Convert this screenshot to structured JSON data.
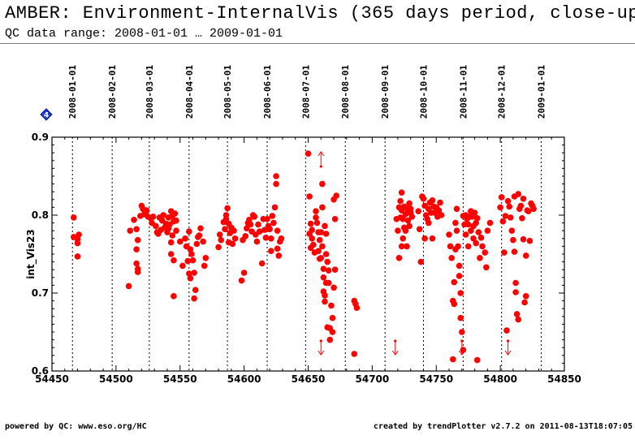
{
  "header": {
    "title": "AMBER: Environment-InternalVis (365 days period, close-up)",
    "subtitle": "QC data range: 2008-01-01 … 2009-01-01"
  },
  "footer": {
    "left": "powered by QC: www.eso.org/HC",
    "right": "created by trendPlotter v2.7.2 on 2011-08-13T18:07:05"
  },
  "badge": {
    "text": "4",
    "color": "#1e3cd6",
    "icon": "diamond-icon"
  },
  "colors": {
    "data": "#ff0000",
    "axis": "#000000"
  },
  "chart_data": {
    "type": "scatter",
    "xlim": [
      54450,
      54850
    ],
    "ylim": [
      0.6,
      0.9
    ],
    "ylabel": "int_Vis23",
    "xticks": [
      54450,
      54500,
      54550,
      54600,
      54650,
      54700,
      54750,
      54800,
      54850
    ],
    "xtick_labels": [
      "54450",
      "54500",
      "54550",
      "54600",
      "54650",
      "54700",
      "54750",
      "54800",
      "54850"
    ],
    "yticks": [
      0.6,
      0.7,
      0.8,
      0.9
    ],
    "ytick_labels": [
      "0.6",
      "0.7",
      "0.8",
      "0.9"
    ],
    "date_marks": [
      {
        "x": 54466,
        "label": "2008-01-01"
      },
      {
        "x": 54497,
        "label": "2008-02-01"
      },
      {
        "x": 54526,
        "label": "2008-03-01"
      },
      {
        "x": 54557,
        "label": "2008-04-01"
      },
      {
        "x": 54587,
        "label": "2008-05-01"
      },
      {
        "x": 54618,
        "label": "2008-06-01"
      },
      {
        "x": 54648,
        "label": "2008-07-01"
      },
      {
        "x": 54679,
        "label": "2008-08-01"
      },
      {
        "x": 54710,
        "label": "2008-09-01"
      },
      {
        "x": 54740,
        "label": "2008-10-01"
      },
      {
        "x": 54771,
        "label": "2008-11-01"
      },
      {
        "x": 54801,
        "label": "2008-12-01"
      },
      {
        "x": 54832,
        "label": "2009-01-01"
      }
    ],
    "outliers": [
      {
        "x": 54660,
        "dir": "up"
      },
      {
        "x": 54660,
        "dir": "down"
      },
      {
        "x": 54718,
        "dir": "down"
      },
      {
        "x": 54770,
        "dir": "down"
      },
      {
        "x": 54806,
        "dir": "down"
      }
    ],
    "points": [
      [
        54467,
        0.797
      ],
      [
        54467,
        0.772
      ],
      [
        54470,
        0.769
      ],
      [
        54470,
        0.764
      ],
      [
        54471,
        0.775
      ],
      [
        54470,
        0.747
      ],
      [
        54510,
        0.709
      ],
      [
        54511,
        0.78
      ],
      [
        54514,
        0.794
      ],
      [
        54516,
        0.782
      ],
      [
        54516,
        0.756
      ],
      [
        54516,
        0.738
      ],
      [
        54517,
        0.727
      ],
      [
        54517,
        0.731
      ],
      [
        54517,
        0.768
      ],
      [
        54519,
        0.799
      ],
      [
        54520,
        0.812
      ],
      [
        54521,
        0.808
      ],
      [
        54522,
        0.801
      ],
      [
        54523,
        0.803
      ],
      [
        54525,
        0.798
      ],
      [
        54524,
        0.806
      ],
      [
        54527,
        0.796
      ],
      [
        54528,
        0.79
      ],
      [
        54529,
        0.798
      ],
      [
        54531,
        0.786
      ],
      [
        54532,
        0.778
      ],
      [
        54533,
        0.776
      ],
      [
        54534,
        0.797
      ],
      [
        54535,
        0.781
      ],
      [
        54536,
        0.793
      ],
      [
        54537,
        0.8
      ],
      [
        54538,
        0.784
      ],
      [
        54539,
        0.789
      ],
      [
        54540,
        0.778
      ],
      [
        54541,
        0.797
      ],
      [
        54541,
        0.783
      ],
      [
        54543,
        0.765
      ],
      [
        54543,
        0.75
      ],
      [
        54542,
        0.788
      ],
      [
        54544,
        0.799
      ],
      [
        54545,
        0.792
      ],
      [
        54546,
        0.802
      ],
      [
        54547,
        0.793
      ],
      [
        54544,
        0.774
      ],
      [
        54545,
        0.742
      ],
      [
        54545,
        0.696
      ],
      [
        54547,
        0.78
      ],
      [
        54543,
        0.805
      ],
      [
        54550,
        0.766
      ],
      [
        54552,
        0.735
      ],
      [
        54554,
        0.77
      ],
      [
        54555,
        0.76
      ],
      [
        54556,
        0.741
      ],
      [
        54557,
        0.725
      ],
      [
        54558,
        0.719
      ],
      [
        54557,
        0.779
      ],
      [
        54558,
        0.756
      ],
      [
        54559,
        0.75
      ],
      [
        54560,
        0.742
      ],
      [
        54561,
        0.726
      ],
      [
        54561,
        0.693
      ],
      [
        54562,
        0.704
      ],
      [
        54563,
        0.763
      ],
      [
        54564,
        0.772
      ],
      [
        54565,
        0.774
      ],
      [
        54566,
        0.783
      ],
      [
        54568,
        0.766
      ],
      [
        54569,
        0.735
      ],
      [
        54570,
        0.745
      ],
      [
        54580,
        0.759
      ],
      [
        54581,
        0.775
      ],
      [
        54582,
        0.768
      ],
      [
        54584,
        0.791
      ],
      [
        54585,
        0.782
      ],
      [
        54586,
        0.8
      ],
      [
        54586,
        0.795
      ],
      [
        54587,
        0.809
      ],
      [
        54588,
        0.789
      ],
      [
        54589,
        0.777
      ],
      [
        54590,
        0.784
      ],
      [
        54591,
        0.763
      ],
      [
        54592,
        0.78
      ],
      [
        54593,
        0.77
      ],
      [
        54588,
        0.765
      ],
      [
        54598,
        0.716
      ],
      [
        54600,
        0.726
      ],
      [
        54599,
        0.768
      ],
      [
        54601,
        0.773
      ],
      [
        54602,
        0.783
      ],
      [
        54603,
        0.79
      ],
      [
        54604,
        0.794
      ],
      [
        54605,
        0.788
      ],
      [
        54606,
        0.779
      ],
      [
        54607,
        0.8
      ],
      [
        54608,
        0.798
      ],
      [
        54609,
        0.775
      ],
      [
        54610,
        0.766
      ],
      [
        54611,
        0.788
      ],
      [
        54612,
        0.779
      ],
      [
        54614,
        0.738
      ],
      [
        54615,
        0.795
      ],
      [
        54616,
        0.781
      ],
      [
        54617,
        0.771
      ],
      [
        54618,
        0.795
      ],
      [
        54619,
        0.786
      ],
      [
        54620,
        0.782
      ],
      [
        54621,
        0.77
      ],
      [
        54621,
        0.754
      ],
      [
        54622,
        0.799
      ],
      [
        54623,
        0.79
      ],
      [
        54624,
        0.81
      ],
      [
        54625,
        0.85
      ],
      [
        54625,
        0.84
      ],
      [
        54626,
        0.78
      ],
      [
        54626,
        0.757
      ],
      [
        54627,
        0.748
      ],
      [
        54628,
        0.766
      ],
      [
        54629,
        0.77
      ],
      [
        54650,
        0.879
      ],
      [
        54651,
        0.824
      ],
      [
        54651,
        0.776
      ],
      [
        54652,
        0.758
      ],
      [
        54652,
        0.789
      ],
      [
        54653,
        0.77
      ],
      [
        54653,
        0.781
      ],
      [
        54654,
        0.762
      ],
      [
        54655,
        0.752
      ],
      [
        54656,
        0.797
      ],
      [
        54656,
        0.805
      ],
      [
        54657,
        0.79
      ],
      [
        54658,
        0.778
      ],
      [
        54658,
        0.754
      ],
      [
        54659,
        0.744
      ],
      [
        54659,
        0.768
      ],
      [
        54660,
        0.778
      ],
      [
        54660,
        0.745
      ],
      [
        54661,
        0.84
      ],
      [
        54661,
        0.81
      ],
      [
        54661,
        0.76
      ],
      [
        54662,
        0.731
      ],
      [
        54662,
        0.72
      ],
      [
        54662,
        0.702
      ],
      [
        54663,
        0.697
      ],
      [
        54663,
        0.689
      ],
      [
        54664,
        0.75
      ],
      [
        54664,
        0.776
      ],
      [
        54665,
        0.74
      ],
      [
        54666,
        0.729
      ],
      [
        54666,
        0.713
      ],
      [
        54667,
        0.655
      ],
      [
        54667,
        0.64
      ],
      [
        54668,
        0.684
      ],
      [
        54669,
        0.668
      ],
      [
        54669,
        0.65
      ],
      [
        54670,
        0.82
      ],
      [
        54671,
        0.795
      ],
      [
        54672,
        0.825
      ],
      [
        54670,
        0.707
      ],
      [
        54671,
        0.73
      ],
      [
        54663,
        0.786
      ],
      [
        54664,
        0.713
      ],
      [
        54665,
        0.656
      ],
      [
        54686,
        0.69
      ],
      [
        54687,
        0.686
      ],
      [
        54688,
        0.681
      ],
      [
        54686,
        0.622
      ],
      [
        54719,
        0.795
      ],
      [
        54720,
        0.78
      ],
      [
        54721,
        0.81
      ],
      [
        54722,
        0.818
      ],
      [
        54722,
        0.797
      ],
      [
        54723,
        0.829
      ],
      [
        54723,
        0.806
      ],
      [
        54724,
        0.795
      ],
      [
        54725,
        0.811
      ],
      [
        54725,
        0.784
      ],
      [
        54726,
        0.801
      ],
      [
        54726,
        0.78
      ],
      [
        54727,
        0.81
      ],
      [
        54728,
        0.793
      ],
      [
        54728,
        0.806
      ],
      [
        54729,
        0.815
      ],
      [
        54729,
        0.786
      ],
      [
        54730,
        0.803
      ],
      [
        54730,
        0.808
      ],
      [
        54731,
        0.798
      ],
      [
        54721,
        0.745
      ],
      [
        54723,
        0.76
      ],
      [
        54724,
        0.77
      ],
      [
        54727,
        0.76
      ],
      [
        54736,
        0.805
      ],
      [
        54737,
        0.782
      ],
      [
        54738,
        0.74
      ],
      [
        54739,
        0.824
      ],
      [
        54740,
        0.821
      ],
      [
        54741,
        0.812
      ],
      [
        54742,
        0.8
      ],
      [
        54743,
        0.795
      ],
      [
        54744,
        0.808
      ],
      [
        54744,
        0.79
      ],
      [
        54745,
        0.816
      ],
      [
        54746,
        0.803
      ],
      [
        54747,
        0.819
      ],
      [
        54748,
        0.811
      ],
      [
        54749,
        0.803
      ],
      [
        54750,
        0.81
      ],
      [
        54751,
        0.798
      ],
      [
        54752,
        0.806
      ],
      [
        54753,
        0.816
      ],
      [
        54754,
        0.8
      ],
      [
        54741,
        0.77
      ],
      [
        54747,
        0.77
      ],
      [
        54760,
        0.775
      ],
      [
        54761,
        0.76
      ],
      [
        54762,
        0.745
      ],
      [
        54763,
        0.69
      ],
      [
        54764,
        0.686
      ],
      [
        54764,
        0.714
      ],
      [
        54765,
        0.756
      ],
      [
        54765,
        0.79
      ],
      [
        54766,
        0.808
      ],
      [
        54766,
        0.78
      ],
      [
        54767,
        0.76
      ],
      [
        54768,
        0.735
      ],
      [
        54768,
        0.722
      ],
      [
        54769,
        0.7
      ],
      [
        54769,
        0.668
      ],
      [
        54770,
        0.65
      ],
      [
        54771,
        0.799
      ],
      [
        54772,
        0.788
      ],
      [
        54773,
        0.8
      ],
      [
        54773,
        0.775
      ],
      [
        54774,
        0.795
      ],
      [
        54775,
        0.788
      ],
      [
        54775,
        0.76
      ],
      [
        54776,
        0.798
      ],
      [
        54777,
        0.805
      ],
      [
        54777,
        0.78
      ],
      [
        54778,
        0.798
      ],
      [
        54779,
        0.786
      ],
      [
        54779,
        0.77
      ],
      [
        54780,
        0.803
      ],
      [
        54781,
        0.79
      ],
      [
        54781,
        0.764
      ],
      [
        54782,
        0.796
      ],
      [
        54783,
        0.778
      ],
      [
        54784,
        0.745
      ],
      [
        54785,
        0.771
      ],
      [
        54786,
        0.76
      ],
      [
        54788,
        0.752
      ],
      [
        54789,
        0.733
      ],
      [
        54790,
        0.78
      ],
      [
        54792,
        0.79
      ],
      [
        54763,
        0.615
      ],
      [
        54782,
        0.614
      ],
      [
        54771,
        0.627
      ],
      [
        54800,
        0.81
      ],
      [
        54801,
        0.823
      ],
      [
        54802,
        0.792
      ],
      [
        54803,
        0.752
      ],
      [
        54804,
        0.799
      ],
      [
        54805,
        0.652
      ],
      [
        54806,
        0.818
      ],
      [
        54807,
        0.811
      ],
      [
        54808,
        0.797
      ],
      [
        54809,
        0.78
      ],
      [
        54810,
        0.768
      ],
      [
        54811,
        0.824
      ],
      [
        54811,
        0.753
      ],
      [
        54812,
        0.713
      ],
      [
        54812,
        0.701
      ],
      [
        54813,
        0.673
      ],
      [
        54814,
        0.666
      ],
      [
        54814,
        0.827
      ],
      [
        54815,
        0.808
      ],
      [
        54816,
        0.812
      ],
      [
        54817,
        0.796
      ],
      [
        54818,
        0.821
      ],
      [
        54819,
        0.688
      ],
      [
        54820,
        0.696
      ],
      [
        54820,
        0.748
      ],
      [
        54821,
        0.806
      ],
      [
        54822,
        0.805
      ],
      [
        54823,
        0.767
      ],
      [
        54824,
        0.815
      ],
      [
        54825,
        0.812
      ],
      [
        54826,
        0.808
      ],
      [
        54818,
        0.769
      ]
    ]
  }
}
